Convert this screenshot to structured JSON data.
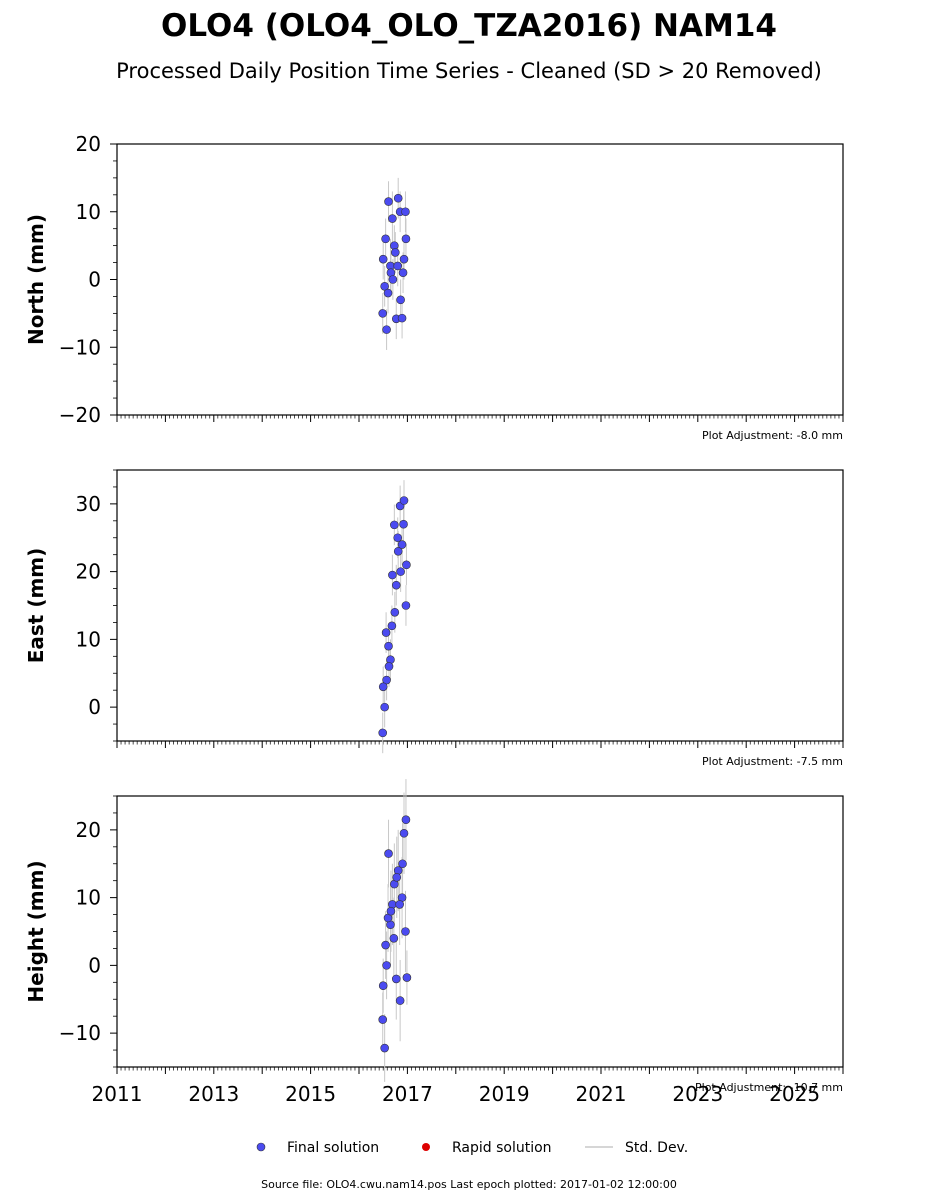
{
  "title": "OLO4 (OLO4_OLO_TZA2016) NAM14",
  "subtitle": "Processed Daily Position Time Series - Cleaned (SD > 20 Removed)",
  "footer": "Source file: OLO4.cwu.nam14.pos  Last epoch plotted: 2017-01-02 12:00:00",
  "legend": {
    "final": "Final solution",
    "rapid": "Rapid solution",
    "std": "Std. Dev."
  },
  "colors": {
    "final": "#4b4bf0",
    "rapid": "#dd0000",
    "std": "#c8c8c8",
    "edge": "#333333"
  },
  "chart_data": [
    {
      "type": "scatter",
      "ylabel": "North (mm)",
      "ylim": [
        -20,
        20
      ],
      "yticks": [
        -20,
        -10,
        0,
        10,
        20
      ],
      "adjustment": "Plot Adjustment: -8.0 mm",
      "xlim": [
        2011,
        2026
      ],
      "xticks": [
        "2011",
        "2013",
        "2015",
        "2017",
        "2019",
        "2021",
        "2023",
        "2025"
      ],
      "x": [
        2016.49,
        2016.53,
        2016.57,
        2016.61,
        2016.65,
        2016.69,
        2016.73,
        2016.77,
        2016.81,
        2016.85,
        2016.89,
        2016.93,
        2016.97,
        2016.5,
        2016.55,
        2016.6,
        2016.66,
        2016.7,
        2016.75,
        2016.8,
        2016.86,
        2016.91,
        2016.96
      ],
      "y": [
        -5,
        -1,
        -7.4,
        11.5,
        2,
        9,
        5,
        -5.8,
        12,
        10,
        -5.7,
        3,
        6,
        3,
        6,
        -2,
        1,
        0,
        4,
        2,
        -3,
        1,
        10
      ],
      "std": [
        3,
        3,
        3,
        3,
        4,
        4,
        3,
        3,
        3,
        3,
        3,
        3,
        3,
        3,
        3,
        3,
        3,
        3,
        3,
        3,
        3,
        3,
        3
      ]
    },
    {
      "type": "scatter",
      "ylabel": "East (mm)",
      "ylim": [
        -5,
        35
      ],
      "yticks": [
        0,
        10,
        20,
        30
      ],
      "adjustment": "Plot Adjustment: -7.5 mm",
      "xlim": [
        2011,
        2026
      ],
      "xticks": [
        "2011",
        "2013",
        "2015",
        "2017",
        "2019",
        "2021",
        "2023",
        "2025"
      ],
      "x": [
        2016.49,
        2016.53,
        2016.57,
        2016.61,
        2016.65,
        2016.69,
        2016.73,
        2016.77,
        2016.81,
        2016.85,
        2016.89,
        2016.93,
        2016.97,
        2016.5,
        2016.56,
        2016.62,
        2016.68,
        2016.74,
        2016.8,
        2016.86,
        2016.92,
        2016.98
      ],
      "y": [
        -3.8,
        0,
        4,
        9,
        7,
        19.5,
        26.9,
        18,
        23,
        29.7,
        24,
        30.5,
        15,
        3,
        11,
        6,
        12,
        14,
        25,
        20,
        27,
        21
      ],
      "std": [
        3,
        3,
        3,
        3,
        3,
        3,
        3,
        3,
        3,
        3,
        3,
        3,
        3,
        3,
        3,
        3,
        3,
        3,
        3,
        3,
        3,
        3
      ]
    },
    {
      "type": "scatter",
      "ylabel": "Height (mm)",
      "ylim": [
        -15,
        25
      ],
      "yticks": [
        -10,
        0,
        10,
        20
      ],
      "adjustment": "Plot Adjustment: -10.7 mm",
      "xlim": [
        2011,
        2026
      ],
      "xticks": [
        "2011",
        "2013",
        "2015",
        "2017",
        "2019",
        "2021",
        "2023",
        "2025"
      ],
      "x": [
        2016.49,
        2016.53,
        2016.57,
        2016.61,
        2016.65,
        2016.69,
        2016.73,
        2016.77,
        2016.81,
        2016.85,
        2016.89,
        2016.93,
        2016.97,
        2016.5,
        2016.55,
        2016.6,
        2016.66,
        2016.72,
        2016.78,
        2016.84,
        2016.9,
        2016.96,
        2016.99
      ],
      "y": [
        -8,
        -12.2,
        0,
        16.5,
        6,
        9,
        12,
        -2,
        14,
        -5.2,
        10,
        19.5,
        21.5,
        -3,
        3,
        7,
        8,
        4,
        13,
        9,
        15,
        5,
        -1.8
      ],
      "std": [
        4,
        5,
        5,
        5,
        6,
        6,
        6,
        6,
        6,
        6,
        6,
        6,
        6,
        4,
        5,
        5,
        6,
        6,
        6,
        6,
        6,
        6,
        4
      ]
    }
  ]
}
